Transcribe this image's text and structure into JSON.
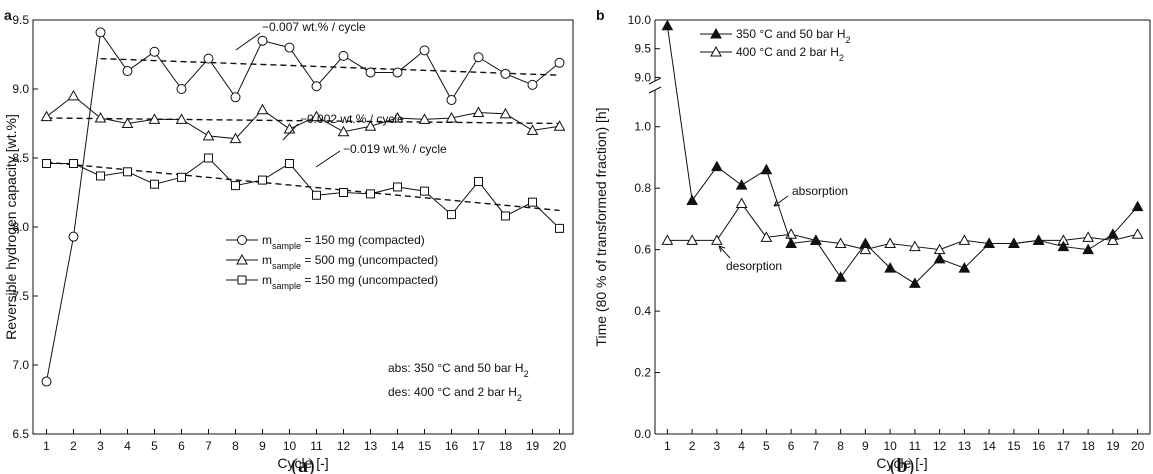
{
  "chart_data": [
    {
      "panel": "a",
      "type": "line",
      "xlabel": "Cycle [-]",
      "ylabel": "Reversible hydrogen capacity [wt.%]",
      "xlim": [
        0.5,
        20.5
      ],
      "ylim": [
        6.5,
        9.5
      ],
      "x_ticks": [
        1,
        2,
        3,
        4,
        5,
        6,
        7,
        8,
        9,
        10,
        11,
        12,
        13,
        14,
        15,
        16,
        17,
        18,
        19,
        20
      ],
      "y_ticks": [
        "6.5",
        "7.0",
        "7.5",
        "8.0",
        "8.5",
        "9.0",
        "9.5"
      ],
      "x": [
        1,
        2,
        3,
        4,
        5,
        6,
        7,
        8,
        9,
        10,
        11,
        12,
        13,
        14,
        15,
        16,
        17,
        18,
        19,
        20
      ],
      "series": [
        {
          "legend_main": "m",
          "legend_sub": "sample",
          "legend_rest": " = 150 mg (compacted)",
          "marker": "circle",
          "fill": "open",
          "values": [
            6.88,
            7.93,
            9.41,
            9.13,
            9.27,
            9.0,
            9.22,
            8.94,
            9.35,
            9.3,
            9.02,
            9.24,
            9.12,
            9.12,
            9.28,
            8.92,
            9.23,
            9.11,
            9.03,
            9.19
          ]
        },
        {
          "legend_main": "m",
          "legend_sub": "sample",
          "legend_rest": " = 500 mg (uncompacted)",
          "marker": "triangle",
          "fill": "open",
          "values": [
            8.8,
            8.95,
            8.79,
            8.75,
            8.78,
            8.78,
            8.66,
            8.64,
            8.85,
            8.71,
            8.8,
            8.69,
            8.73,
            8.79,
            8.78,
            8.79,
            8.83,
            8.82,
            8.7,
            8.73
          ]
        },
        {
          "legend_main": "m",
          "legend_sub": "sample",
          "legend_rest": " = 150 mg (uncompacted)",
          "marker": "square",
          "fill": "open",
          "values": [
            8.46,
            8.46,
            8.37,
            8.4,
            8.31,
            8.36,
            8.5,
            8.3,
            8.34,
            8.46,
            8.23,
            8.25,
            8.24,
            8.29,
            8.26,
            8.09,
            8.33,
            8.08,
            8.18,
            7.99
          ]
        }
      ],
      "trendlines": [
        {
          "x_start": 3,
          "y_start": 9.22,
          "x_end": 20,
          "y_end": 9.1,
          "label": "−0.007 wt.% / cycle"
        },
        {
          "x_start": 1,
          "y_start": 8.79,
          "x_end": 20,
          "y_end": 8.75,
          "label": "−0.002 wt.% / cycle"
        },
        {
          "x_start": 1,
          "y_start": 8.47,
          "x_end": 20,
          "y_end": 8.12,
          "label": "−0.019 wt.% / cycle"
        }
      ],
      "note_line1_main": "abs: 350 °C and 50 bar H",
      "note_line1_sub": "2",
      "note_line2_main": "des: 400 °C and 2 bar H",
      "note_line2_sub": "2",
      "grid": false,
      "legend_position": "center-right"
    },
    {
      "panel": "b",
      "type": "line",
      "xlabel": "Cycle [-]",
      "ylabel": "Time (80 % of transformed fraction) [h]",
      "xlim": [
        0.5,
        20.5
      ],
      "ylim": [
        0.0,
        10.0
      ],
      "axis_break": {
        "lower_range": [
          0.0,
          1.1
        ],
        "upper_range": [
          8.85,
          10.0
        ]
      },
      "x_ticks": [
        1,
        2,
        3,
        4,
        5,
        6,
        7,
        8,
        9,
        10,
        11,
        12,
        13,
        14,
        15,
        16,
        17,
        18,
        19,
        20
      ],
      "y_ticks_lower": [
        "0.0",
        "0.2",
        "0.4",
        "0.6",
        "0.8",
        "1.0"
      ],
      "y_ticks_upper": [
        "9.0",
        "9.5",
        "10.0"
      ],
      "x": [
        1,
        2,
        3,
        4,
        5,
        6,
        7,
        8,
        9,
        10,
        11,
        12,
        13,
        14,
        15,
        16,
        17,
        18,
        19,
        20
      ],
      "series": [
        {
          "legend_main": "350 °C and 50 bar H",
          "legend_sub": "2",
          "marker": "triangle",
          "fill": "filled",
          "values": [
            9.9,
            0.76,
            0.87,
            0.81,
            0.86,
            0.62,
            0.63,
            0.51,
            0.62,
            0.54,
            0.49,
            0.57,
            0.54,
            0.62,
            0.62,
            0.63,
            0.61,
            0.6,
            0.65,
            0.74
          ]
        },
        {
          "legend_main": "400 °C and 2 bar H",
          "legend_sub": "2",
          "marker": "triangle",
          "fill": "open",
          "values": [
            0.63,
            0.63,
            0.63,
            0.75,
            0.64,
            0.65,
            0.63,
            0.62,
            0.6,
            0.62,
            0.61,
            0.6,
            0.63,
            0.62,
            0.62,
            0.63,
            0.63,
            0.64,
            0.63,
            0.65
          ]
        }
      ],
      "annotations": [
        "absorption",
        "desorption"
      ],
      "grid": false,
      "legend_position": "top-left"
    }
  ],
  "captions": [
    {
      "open": "(",
      "letter": "a",
      "close": ")"
    },
    {
      "open": "(",
      "letter": "b",
      "close": ")"
    }
  ]
}
